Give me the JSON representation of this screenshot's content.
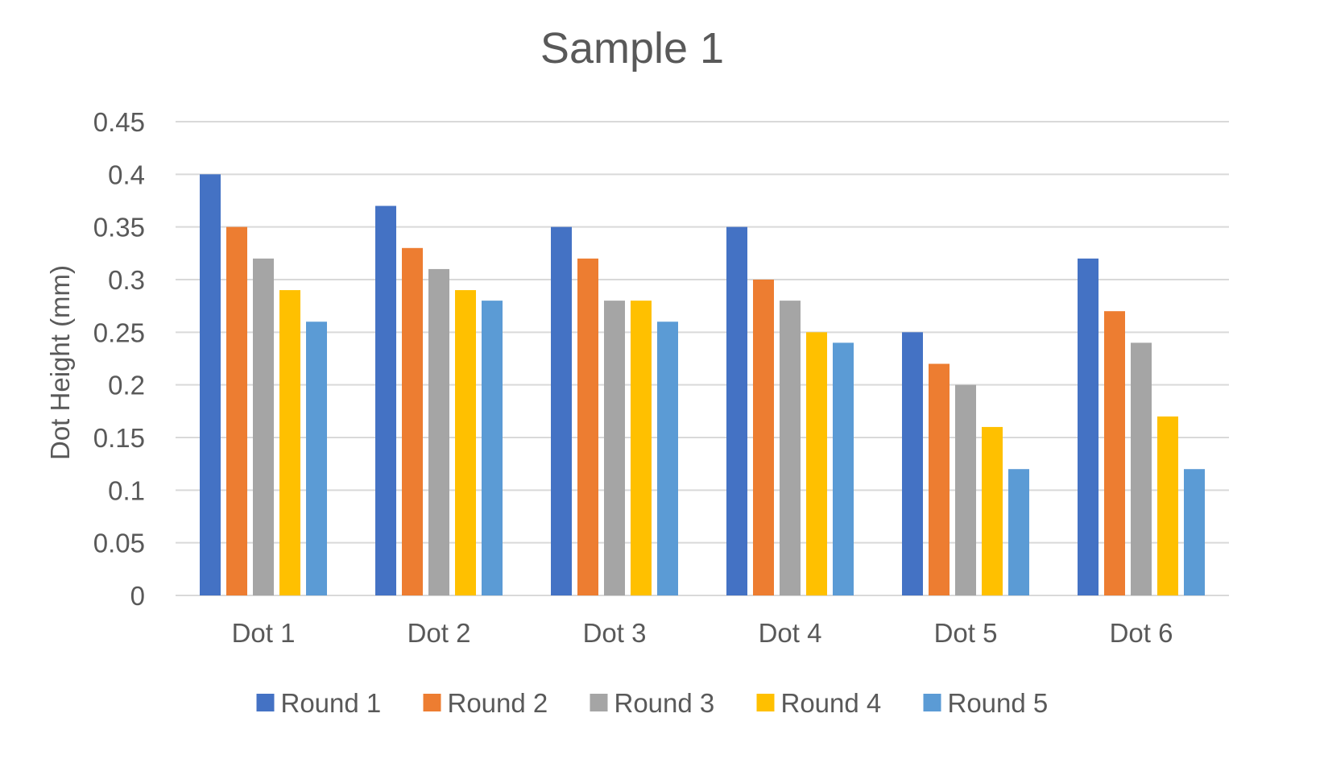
{
  "chart_data": {
    "type": "bar",
    "title": "Sample 1",
    "xlabel": "",
    "ylabel": "Dot Height (mm)",
    "ylim": [
      0,
      0.45
    ],
    "yticks": [
      0,
      0.05,
      0.1,
      0.15,
      0.2,
      0.25,
      0.3,
      0.35,
      0.4,
      0.45
    ],
    "ytick_labels": [
      "0",
      "0.05",
      "0.1",
      "0.15",
      "0.2",
      "0.25",
      "0.3",
      "0.35",
      "0.4",
      "0.45"
    ],
    "grid": true,
    "legend_position": "bottom",
    "categories": [
      "Dot 1",
      "Dot 2",
      "Dot 3",
      "Dot 4",
      "Dot 5",
      "Dot 6"
    ],
    "series": [
      {
        "name": "Round 1",
        "color": "#4472c4",
        "values": [
          0.4,
          0.37,
          0.35,
          0.35,
          0.25,
          0.32
        ]
      },
      {
        "name": "Round 2",
        "color": "#ed7d31",
        "values": [
          0.35,
          0.33,
          0.32,
          0.3,
          0.22,
          0.27
        ]
      },
      {
        "name": "Round 3",
        "color": "#a5a5a5",
        "values": [
          0.32,
          0.31,
          0.28,
          0.28,
          0.2,
          0.24
        ]
      },
      {
        "name": "Round 4",
        "color": "#ffc000",
        "values": [
          0.29,
          0.29,
          0.28,
          0.25,
          0.16,
          0.17
        ]
      },
      {
        "name": "Round 5",
        "color": "#5b9bd5",
        "values": [
          0.26,
          0.28,
          0.26,
          0.24,
          0.12,
          0.12
        ]
      }
    ]
  }
}
